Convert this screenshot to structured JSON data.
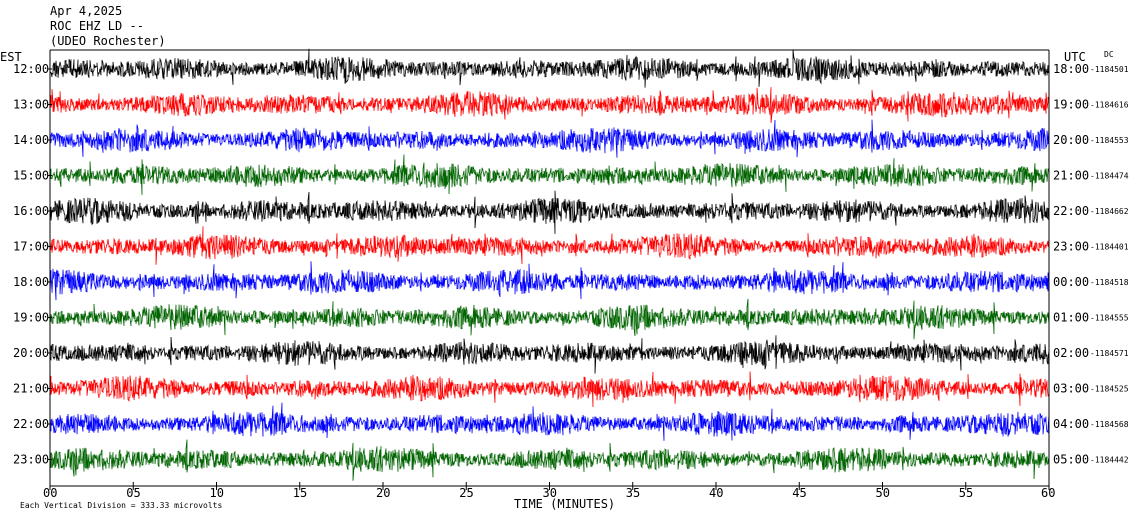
{
  "header": {
    "date": "Apr 4,2025",
    "station": "ROC EHZ LD --",
    "network": "(UDEO Rochester)"
  },
  "chart_data": {
    "type": "line",
    "title": "",
    "xlabel": "TIME (MINUTES)",
    "left_axis_label": "EST",
    "right_axis_label": "UTC",
    "dc_label": "DC",
    "xlim": [
      0,
      60
    ],
    "x_ticks": [
      "00",
      "05",
      "10",
      "15",
      "20",
      "25",
      "30",
      "35",
      "40",
      "45",
      "50",
      "55",
      "60"
    ],
    "rows": [
      {
        "est": "12:00",
        "utc": "18:00",
        "dc": "-1184501",
        "color": "#000000",
        "amp": 0.9
      },
      {
        "est": "13:00",
        "utc": "19:00",
        "dc": "-1184616",
        "color": "#ff0000",
        "amp": 0.9
      },
      {
        "est": "14:00",
        "utc": "20:00",
        "dc": "-1184553",
        "color": "#0000ff",
        "amp": 0.9
      },
      {
        "est": "15:00",
        "utc": "21:00",
        "dc": "-1184474",
        "color": "#006400",
        "amp": 0.9
      },
      {
        "est": "16:00",
        "utc": "22:00",
        "dc": "-1184662",
        "color": "#000000",
        "amp": 0.9
      },
      {
        "est": "17:00",
        "utc": "23:00",
        "dc": "-1184401",
        "color": "#ff0000",
        "amp": 0.9
      },
      {
        "est": "18:00",
        "utc": "00:00",
        "dc": "-1184518",
        "color": "#0000ff",
        "amp": 0.9
      },
      {
        "est": "19:00",
        "utc": "01:00",
        "dc": "-1184555",
        "color": "#006400",
        "amp": 0.9
      },
      {
        "est": "20:00",
        "utc": "02:00",
        "dc": "-1184571",
        "color": "#000000",
        "amp": 0.9
      },
      {
        "est": "21:00",
        "utc": "03:00",
        "dc": "-1184525",
        "color": "#ff0000",
        "amp": 0.9
      },
      {
        "est": "22:00",
        "utc": "04:00",
        "dc": "-1184568",
        "color": "#0000ff",
        "amp": 0.9
      },
      {
        "est": "23:00",
        "utc": "05:00",
        "dc": "-1184442",
        "color": "#006400",
        "amp": 0.9
      }
    ],
    "footnote": "Each Vertical Division =  333.33 microvolts",
    "grid": false
  }
}
